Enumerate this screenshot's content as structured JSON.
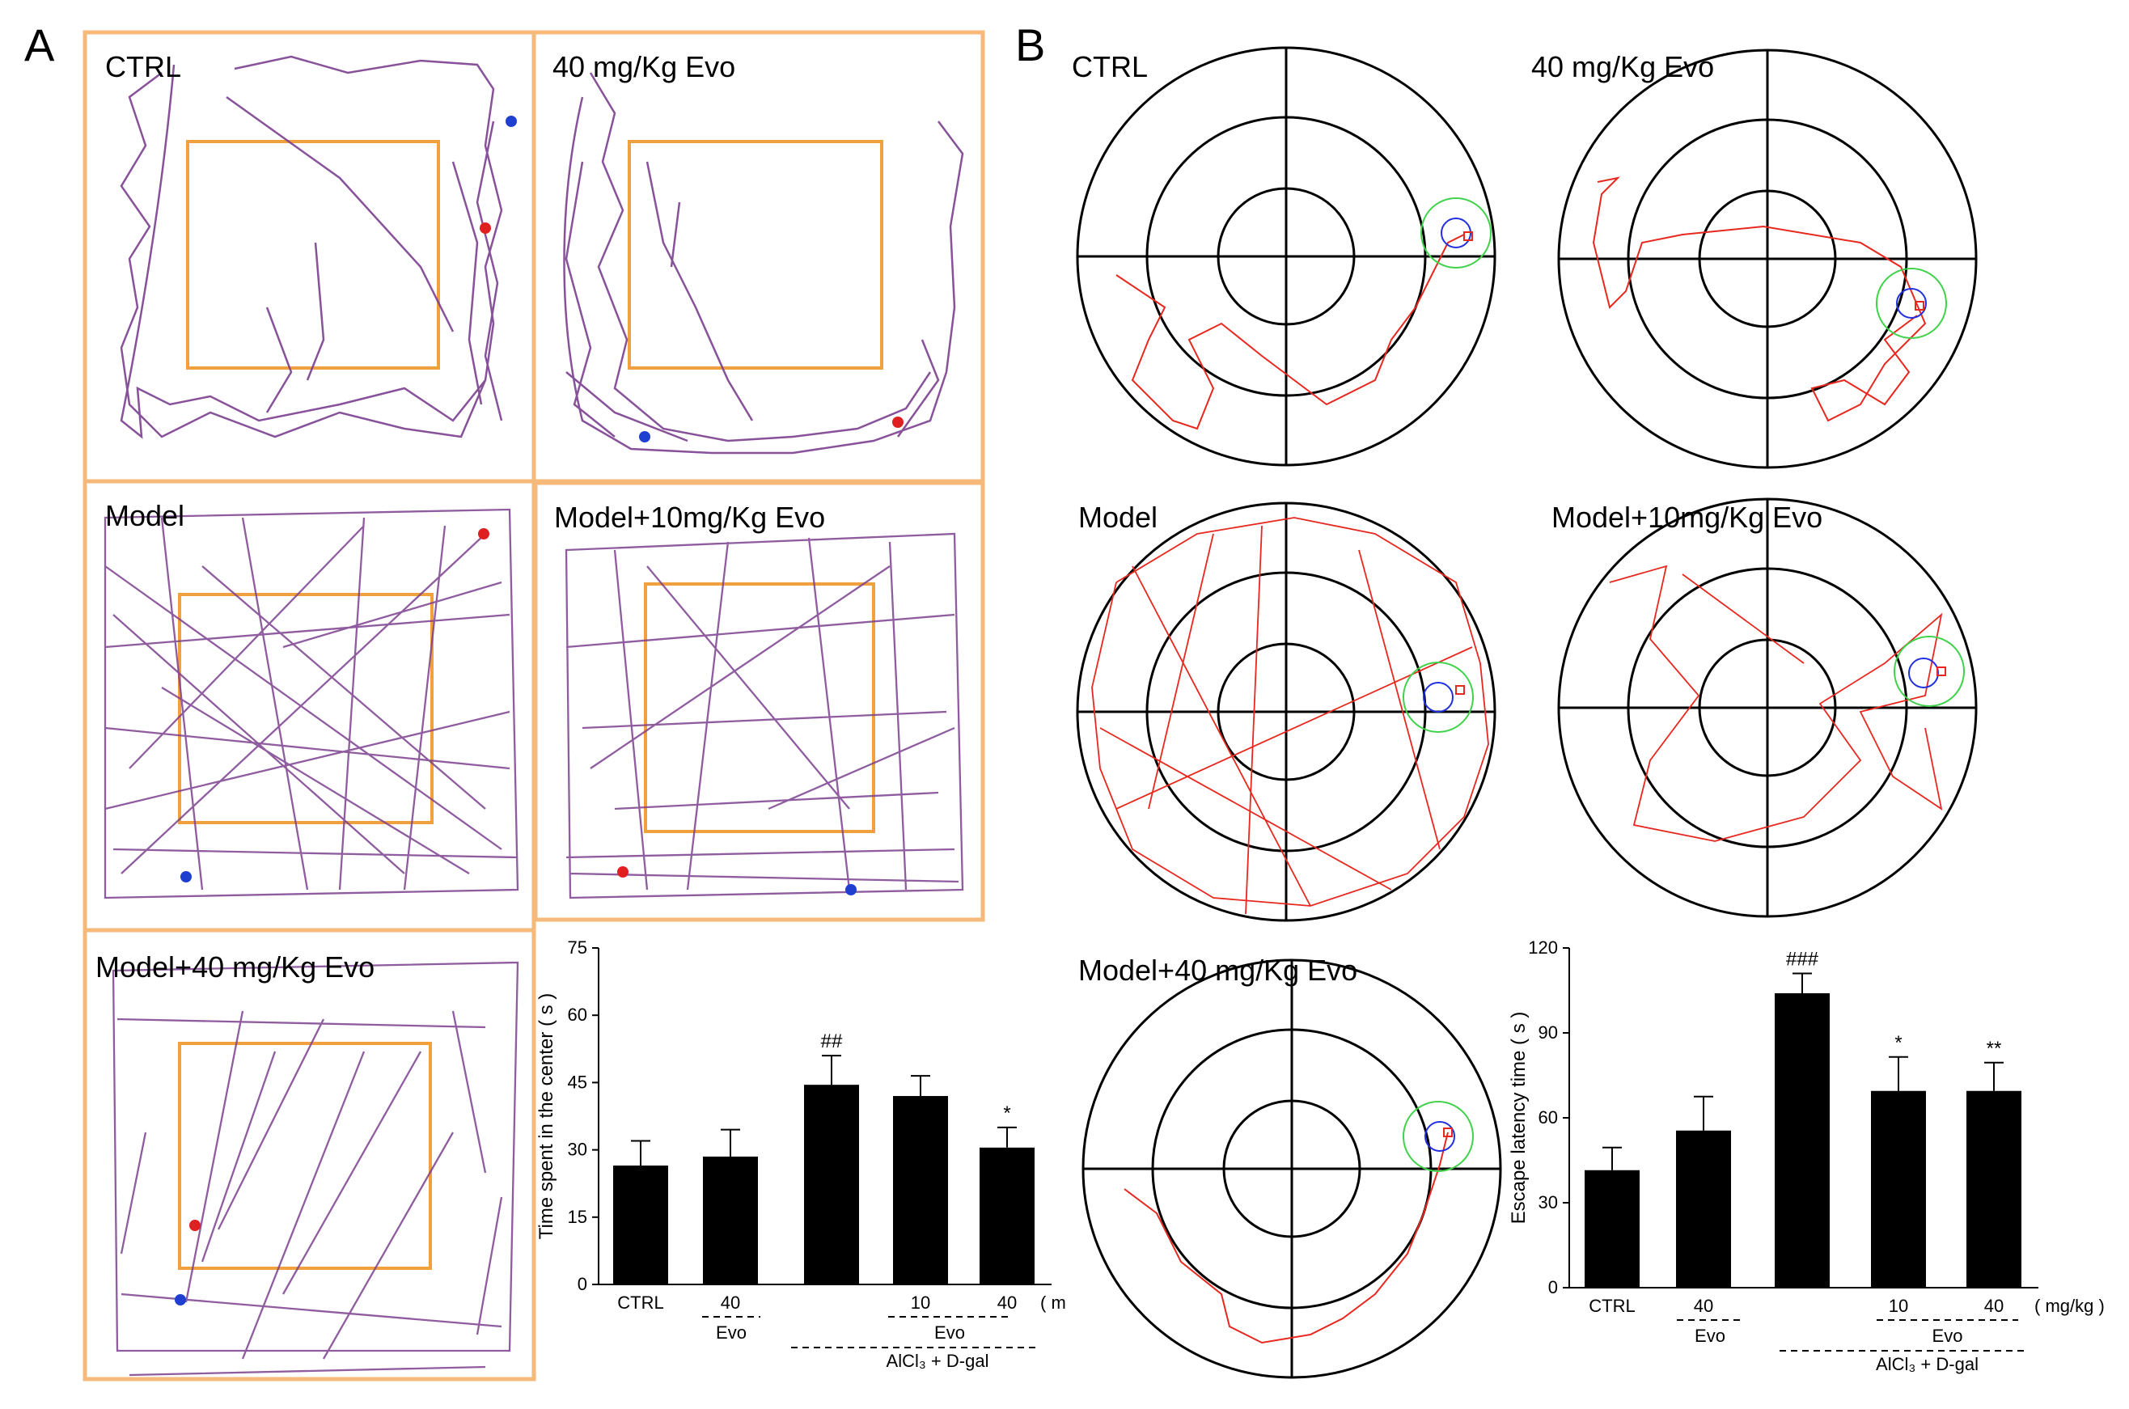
{
  "figure": {
    "panel_a_letter": "A",
    "panel_b_letter": "B",
    "colors": {
      "arena_frame": "#F5B97A",
      "center_zone": "#F0A03C",
      "open_field_track": "#7B3F8F",
      "start_dot": "#E02020",
      "end_dot": "#1F3FD0",
      "maze_lines": "#000000",
      "swim_track": "#E8281E",
      "platform_ring": "#3FD24A",
      "platform": "#2030E0",
      "bars": "#000000"
    }
  },
  "panel_a": {
    "arenas": [
      {
        "label": "CTRL"
      },
      {
        "label": "40 mg/Kg Evo"
      },
      {
        "label": "Model"
      },
      {
        "label": "Model+10mg/Kg Evo"
      },
      {
        "label": "Model+40 mg/Kg Evo"
      }
    ]
  },
  "panel_b": {
    "mazes": [
      {
        "label": "CTRL"
      },
      {
        "label": "40 mg/Kg Evo"
      },
      {
        "label": "Model"
      },
      {
        "label": "Model+10mg/Kg Evo"
      },
      {
        "label": "Model+40 mg/Kg  Evo"
      }
    ]
  },
  "chart_data": [
    {
      "type": "bar",
      "title": "",
      "ylabel": "Time spent in the center ( s )",
      "xlabel": "",
      "ylim": [
        0,
        75
      ],
      "yticks": [
        "0",
        "15",
        "30",
        "45",
        "60",
        "75"
      ],
      "categories": [
        "CTRL",
        "40",
        "",
        "10",
        "40"
      ],
      "unit_label": "( m",
      "values": [
        26.5,
        28.5,
        44.5,
        42,
        30.5
      ],
      "errors": [
        5.5,
        6,
        6.5,
        4.5,
        4.5
      ],
      "annotations": [
        "",
        "",
        "##",
        "",
        "*"
      ],
      "group_labels": {
        "evo_single": "Evo",
        "evo_group": "Evo",
        "model": "AlCl₃ + D-gal"
      }
    },
    {
      "type": "bar",
      "title": "",
      "ylabel": "Escape latency time ( s )",
      "xlabel": "",
      "ylim": [
        0,
        120
      ],
      "yticks": [
        "0",
        "30",
        "60",
        "90",
        "120"
      ],
      "categories": [
        "CTRL",
        "40",
        "",
        "10",
        "40"
      ],
      "unit_label": "( mg/kg )",
      "values": [
        41.5,
        55.5,
        104,
        69.5,
        69.5
      ],
      "errors": [
        8,
        12,
        7,
        12,
        10
      ],
      "annotations": [
        "",
        "",
        "###",
        "*",
        "**"
      ],
      "group_labels": {
        "evo_single": "Evo",
        "evo_group": "Evo",
        "model": "AlCl₃ + D-gal"
      }
    }
  ]
}
